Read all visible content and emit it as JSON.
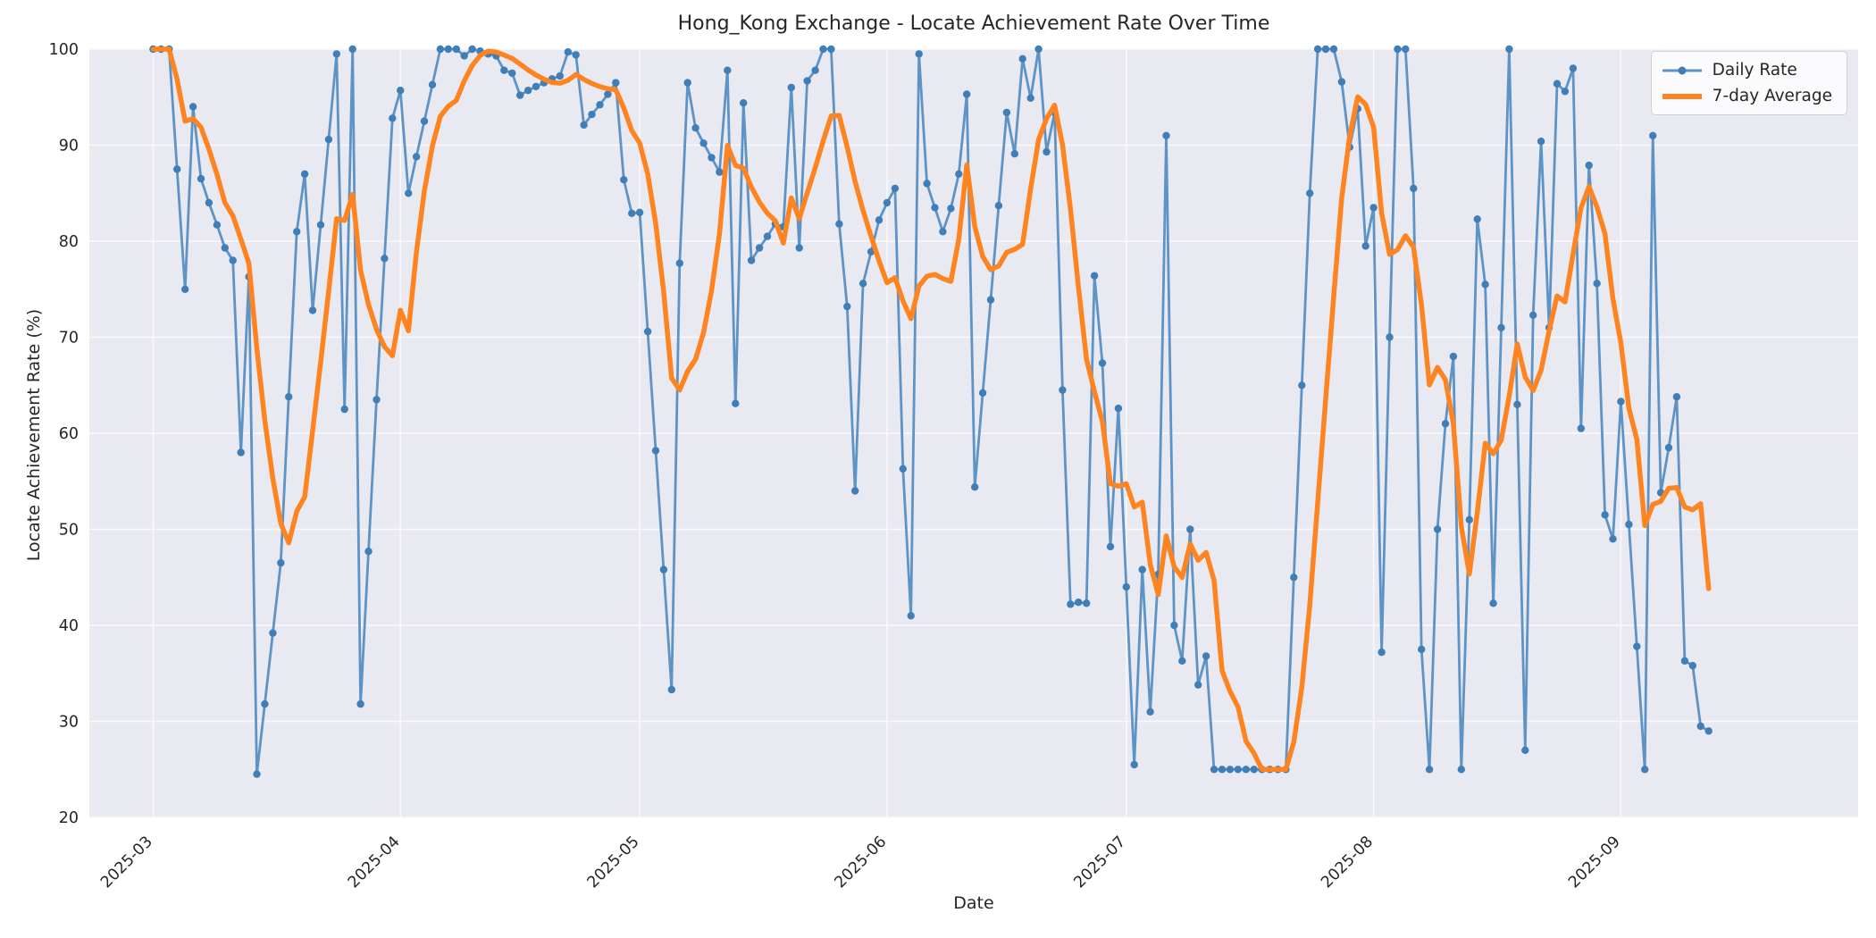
{
  "chart_data": {
    "type": "line",
    "title": "Hong_Kong Exchange - Locate Achievement Rate Over Time",
    "xlabel": "Date",
    "ylabel": "Locate Achievement Rate (%)",
    "ylim": [
      20,
      100
    ],
    "y_ticks": [
      20,
      30,
      40,
      50,
      60,
      70,
      80,
      90,
      100
    ],
    "x_tick_labels": [
      "2025-03",
      "2025-04",
      "2025-05",
      "2025-06",
      "2025-07",
      "2025-08",
      "2025-09"
    ],
    "grid": true,
    "legend_position": "upper right",
    "start_date": "2025-03-01",
    "series": [
      {
        "name": "Daily Rate",
        "color": "#5e93c5",
        "marker_color": "#3f7eb6",
        "values": [
          100,
          100,
          100,
          87.5,
          75,
          94,
          86.5,
          84,
          81.7,
          79.3,
          78,
          58,
          76.3,
          24.5,
          31.8,
          39.2,
          46.5,
          63.8,
          81,
          87,
          72.8,
          81.7,
          90.6,
          99.5,
          62.5,
          100,
          31.8,
          47.7,
          63.5,
          78.2,
          92.8,
          95.7,
          85,
          88.8,
          92.5,
          96.3,
          100,
          100,
          100,
          99.3,
          100,
          99.8,
          99.5,
          99.3,
          97.8,
          97.5,
          95.2,
          95.7,
          96.1,
          96.5,
          96.9,
          97.2,
          99.7,
          99.4,
          92.1,
          93.2,
          94.2,
          95.3,
          96.5,
          86.4,
          82.9,
          83,
          70.6,
          58.2,
          45.8,
          33.3,
          77.7,
          96.5,
          91.8,
          90.2,
          88.7,
          87.2,
          97.8,
          63.1,
          94.4,
          78,
          79.3,
          80.5,
          81.8,
          81.5,
          96,
          79.3,
          96.7,
          97.8,
          100,
          100,
          81.8,
          73.2,
          54,
          75.6,
          78.9,
          82.2,
          84,
          85.5,
          56.3,
          41,
          99.5,
          86,
          83.5,
          81,
          83.4,
          87,
          95.3,
          54.4,
          64.2,
          73.9,
          83.7,
          93.4,
          89.1,
          99,
          94.9,
          100,
          89.3,
          93.4,
          64.5,
          42.2,
          42.4,
          42.3,
          76.4,
          67.3,
          48.2,
          62.6,
          44,
          25.5,
          45.8,
          31,
          45.3,
          91,
          40,
          36.3,
          50,
          33.8,
          36.8,
          25,
          25,
          25,
          25,
          25,
          25,
          25,
          25,
          25,
          25,
          45,
          65,
          85,
          100,
          100,
          100,
          96.6,
          89.8,
          93.8,
          79.5,
          83.5,
          37.2,
          70,
          100,
          100,
          85.5,
          37.5,
          25,
          50,
          61,
          68,
          25,
          51,
          82.3,
          75.5,
          42.3,
          71,
          100,
          63,
          27,
          72.3,
          90.4,
          71,
          96.4,
          95.6,
          98,
          60.5,
          87.9,
          75.6,
          51.5,
          49,
          63.3,
          50.5,
          37.8,
          25,
          91,
          53.8,
          58.5,
          63.8,
          36.3,
          35.8,
          29.5,
          29
        ]
      },
      {
        "name": "7-day Average",
        "color": "#fd8420",
        "derived": "rolling_mean_of_daily",
        "window": 7
      }
    ]
  },
  "legend": {
    "daily_label": "Daily Rate",
    "average_label": "7-day Average"
  },
  "style": {
    "plot_bg": "#e9e9f2",
    "grid_color": "#f9f9fc",
    "text_color": "#262626"
  }
}
